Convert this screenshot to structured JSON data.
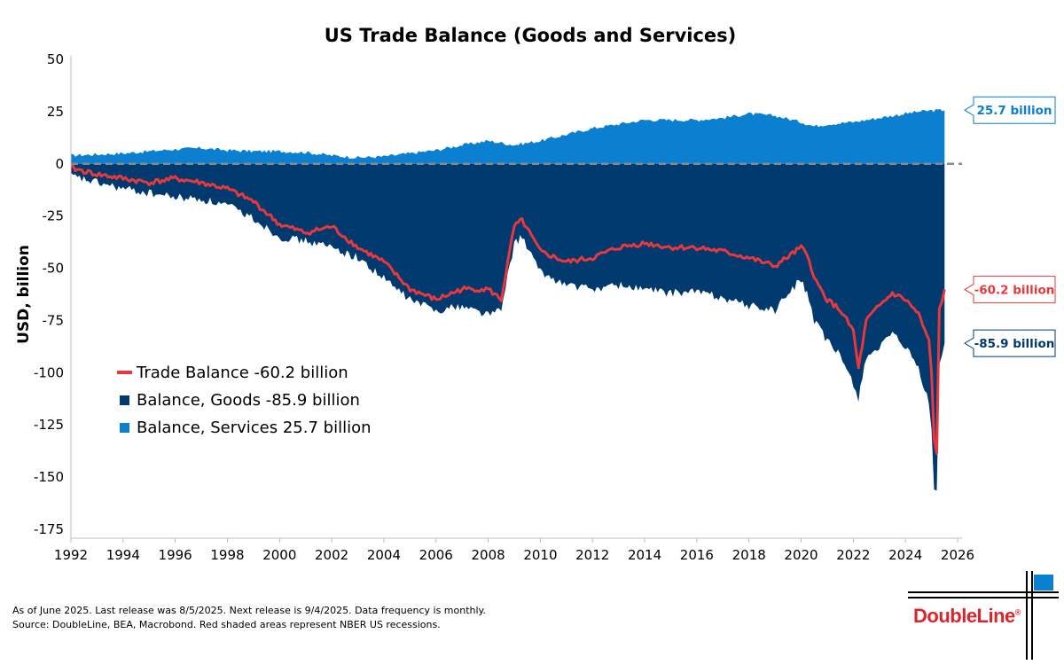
{
  "chart_data": {
    "type": "area",
    "title": "US Trade Balance (Goods and Services)",
    "ylabel": "USD, billion",
    "xlabel": "",
    "xlim": [
      1992,
      2026
    ],
    "ylim": [
      -175,
      50
    ],
    "x_ticks": [
      "1992",
      "1994",
      "1996",
      "1998",
      "2000",
      "2002",
      "2004",
      "2006",
      "2008",
      "2010",
      "2012",
      "2014",
      "2016",
      "2018",
      "2020",
      "2022",
      "2024",
      "2026"
    ],
    "y_ticks": [
      "50",
      "25",
      "0",
      "-25",
      "-50",
      "-75",
      "-100",
      "-125",
      "-150",
      "-175"
    ],
    "zero_line": "dashed gray",
    "legend_placement": "lower-left",
    "series": [
      {
        "name": "Balance, Services",
        "kind": "area",
        "color": "#0b7fd0",
        "x": [
          1992,
          1993,
          1994,
          1995,
          1996,
          1997,
          1998,
          1999,
          2000,
          2001,
          2002,
          2003,
          2004,
          2005,
          2006,
          2007,
          2008,
          2008.5,
          2009,
          2010,
          2011,
          2012,
          2013,
          2014,
          2015,
          2016,
          2017,
          2018,
          2019,
          2020,
          2020.5,
          2021,
          2022,
          2023,
          2024,
          2024.5,
          2025,
          2025.5
        ],
        "values": [
          4,
          4.5,
          5,
          6,
          7,
          7.5,
          6.5,
          6,
          6,
          5.5,
          4,
          3,
          3.5,
          5,
          6.5,
          9,
          11,
          10,
          9,
          11,
          14,
          17,
          19,
          21,
          21,
          21,
          22,
          24,
          23,
          20,
          18,
          19,
          20,
          22,
          24,
          25,
          25.5,
          25.7
        ]
      },
      {
        "name": "Balance, Goods",
        "kind": "area",
        "color": "#003a6e",
        "x": [
          1992,
          1993,
          1994,
          1995,
          1996,
          1997,
          1998,
          1999,
          2000,
          2001,
          2002,
          2003,
          2004,
          2005,
          2006,
          2007,
          2008,
          2008.5,
          2009,
          2009.3,
          2010,
          2011,
          2012,
          2013,
          2014,
          2015,
          2016,
          2017,
          2018,
          2019,
          2020,
          2020.3,
          2020.5,
          2021,
          2021.5,
          2022,
          2022.2,
          2022.5,
          2023,
          2023.5,
          2024,
          2024.5,
          2024.9,
          2025,
          2025.1,
          2025.2,
          2025.3,
          2025.4,
          2025.5
        ],
        "values": [
          -6,
          -9,
          -12,
          -14,
          -16,
          -17,
          -20,
          -26,
          -35,
          -37,
          -40,
          -45,
          -55,
          -65,
          -70,
          -68,
          -72,
          -70,
          -38,
          -35,
          -52,
          -58,
          -60,
          -58,
          -60,
          -62,
          -61,
          -64,
          -68,
          -70,
          -55,
          -65,
          -75,
          -85,
          -92,
          -105,
          -112,
          -92,
          -88,
          -82,
          -88,
          -98,
          -115,
          -128,
          -155,
          -158,
          -95,
          -92,
          -85.9
        ]
      },
      {
        "name": "Trade Balance",
        "kind": "line",
        "color": "#e8383d",
        "x": [
          1992,
          1993,
          1994,
          1995,
          1996,
          1997,
          1998,
          1999,
          2000,
          2001,
          2002,
          2003,
          2004,
          2005,
          2006,
          2007,
          2008,
          2008.5,
          2009,
          2009.3,
          2010,
          2011,
          2012,
          2013,
          2014,
          2015,
          2016,
          2017,
          2018,
          2019,
          2020,
          2020.3,
          2020.5,
          2021,
          2021.5,
          2022,
          2022.2,
          2022.5,
          2023,
          2023.5,
          2024,
          2024.5,
          2024.9,
          2025,
          2025.1,
          2025.2,
          2025.3,
          2025.4,
          2025.5
        ],
        "values": [
          -2,
          -5,
          -7,
          -9,
          -7,
          -9,
          -12,
          -18,
          -29,
          -33,
          -30,
          -40,
          -47,
          -60,
          -65,
          -60,
          -60,
          -65,
          -30,
          -27,
          -42,
          -47,
          -45,
          -40,
          -38,
          -40,
          -40,
          -42,
          -45,
          -49,
          -40,
          -45,
          -55,
          -65,
          -70,
          -80,
          -98,
          -75,
          -68,
          -62,
          -65,
          -72,
          -85,
          -100,
          -132,
          -138,
          -70,
          -65,
          -60.2
        ]
      }
    ],
    "legend": [
      {
        "label": "Trade Balance",
        "value": "-60.2 billion",
        "style": "line",
        "color": "#e8383d"
      },
      {
        "label": "Balance, Goods",
        "value": "-85.9 billion",
        "style": "square",
        "color": "#003a6e"
      },
      {
        "label": "Balance, Services",
        "value": "25.7 billion",
        "style": "square",
        "color": "#0b7fd0"
      }
    ],
    "callouts": [
      {
        "text": "25.7 billion",
        "value": 25.7,
        "color": "#0b7fd0"
      },
      {
        "text": "-60.2 billion",
        "value": -60.2,
        "color": "#e8383d"
      },
      {
        "text": "-85.9 billion",
        "value": -85.9,
        "color": "#003a6e"
      }
    ]
  },
  "footer": {
    "note": "As of June 2025. Last release was 8/5/2025. Next release is 9/4/2025. Data frequency is monthly.",
    "source": "Source: DoubleLine, BEA, Macrobond. Red shaded areas represent NBER US recessions."
  },
  "logo": {
    "text": "DoubleLine",
    "mark": "®"
  }
}
